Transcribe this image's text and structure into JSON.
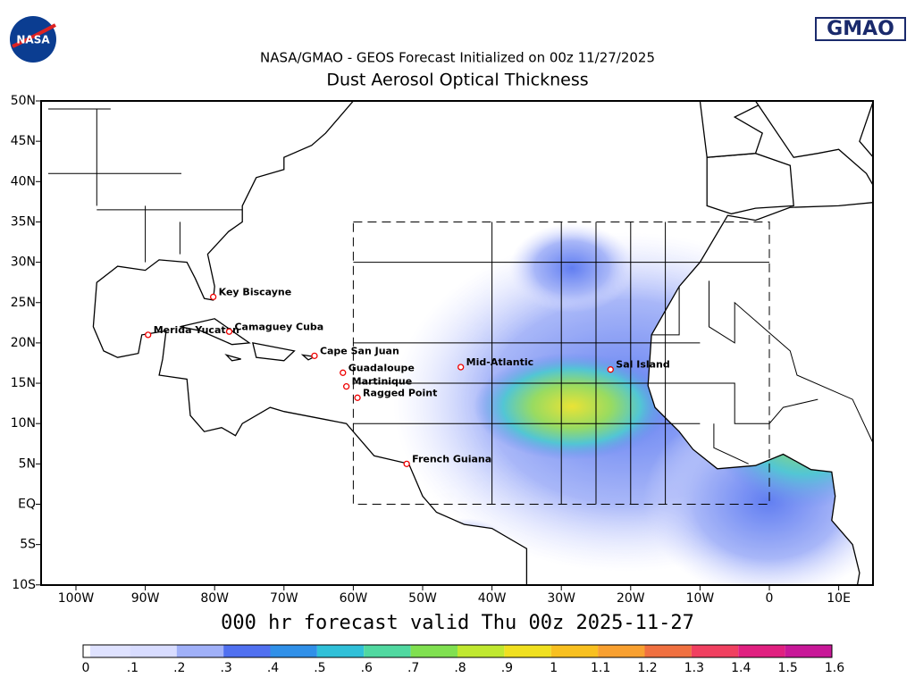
{
  "header": {
    "nasa_logo": "NASA",
    "gmao_logo": "GMAO",
    "subtitle": "NASA/GMAO - GEOS Forecast Initialized on 00z 11/27/2025",
    "title": "Dust Aerosol Optical Thickness"
  },
  "map": {
    "lat_labels": [
      "50N",
      "45N",
      "40N",
      "35N",
      "30N",
      "25N",
      "20N",
      "15N",
      "10N",
      "5N",
      "EQ",
      "5S",
      "10S"
    ],
    "lon_labels": [
      "100W",
      "90W",
      "80W",
      "70W",
      "60W",
      "50W",
      "40W",
      "30W",
      "20W",
      "10W",
      "0",
      "10E"
    ],
    "stations": [
      "Key Biscayne",
      "Merida Yucatan",
      "Camaguey Cuba",
      "Cape San Juan",
      "Guadaloupe",
      "Martinique",
      "Ragged Point",
      "Mid-Atlantic",
      "Sal Island",
      "French Guiana"
    ]
  },
  "footer": "000 hr forecast valid Thu 00z 2025-11-27",
  "colorbar": {
    "labels": [
      "0",
      ".1",
      ".2",
      ".3",
      ".4",
      ".5",
      ".6",
      ".7",
      ".8",
      ".9",
      "1",
      "1.1",
      "1.2",
      "1.3",
      "1.4",
      "1.5",
      "1.6"
    ]
  }
}
